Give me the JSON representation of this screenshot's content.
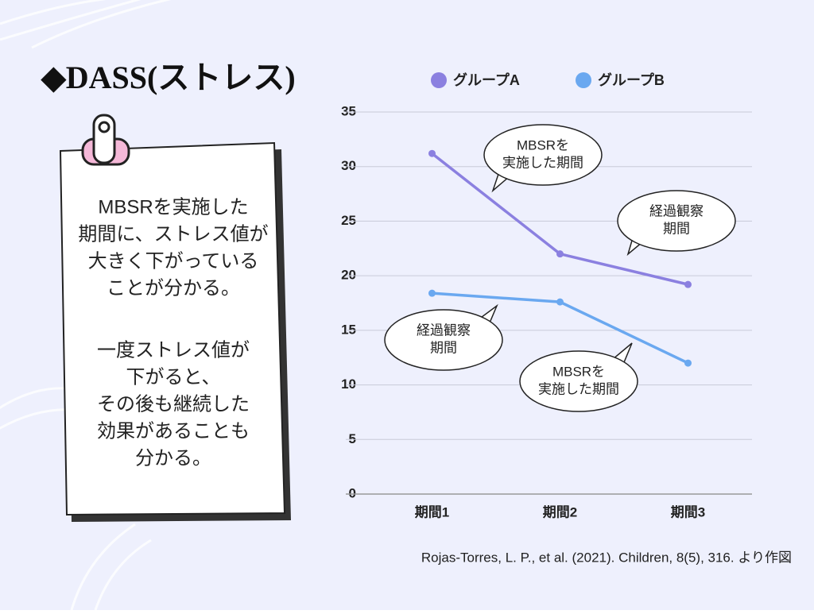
{
  "title": "◆DASS(ストレス)",
  "note": {
    "paragraphs": [
      {
        "lines": [
          "MBSRを実施した",
          "期間に、ストレス値が",
          "大きく下がっている",
          "ことが分かる。"
        ]
      },
      {
        "lines": [
          "一度ストレス値が",
          "下がると、",
          "その後も継続した",
          "効果があることも",
          "分かる。"
        ]
      }
    ]
  },
  "citation": "Rojas-Torres, L. P., et al. (2021). Children, 8(5), 316. より作図",
  "chart_data": {
    "type": "line",
    "categories": [
      "期間1",
      "期間2",
      "期間3"
    ],
    "series": [
      {
        "name": "グループA",
        "color": "#8b80e0",
        "values": [
          31.2,
          22,
          19.2
        ]
      },
      {
        "name": "グループB",
        "color": "#6aa8f0",
        "values": [
          18.4,
          17.6,
          12
        ]
      }
    ],
    "ylim": [
      0,
      35
    ],
    "yticks": [
      0,
      5,
      10,
      15,
      20,
      25,
      30,
      35
    ],
    "grid": true,
    "legend": "top",
    "annotations": [
      {
        "lines": [
          "MBSRを",
          "実施した期間"
        ]
      },
      {
        "lines": [
          "経過観察",
          "期間"
        ]
      },
      {
        "lines": [
          "経過観察",
          "期間"
        ]
      },
      {
        "lines": [
          "MBSRを",
          "実施した期間"
        ]
      }
    ]
  }
}
